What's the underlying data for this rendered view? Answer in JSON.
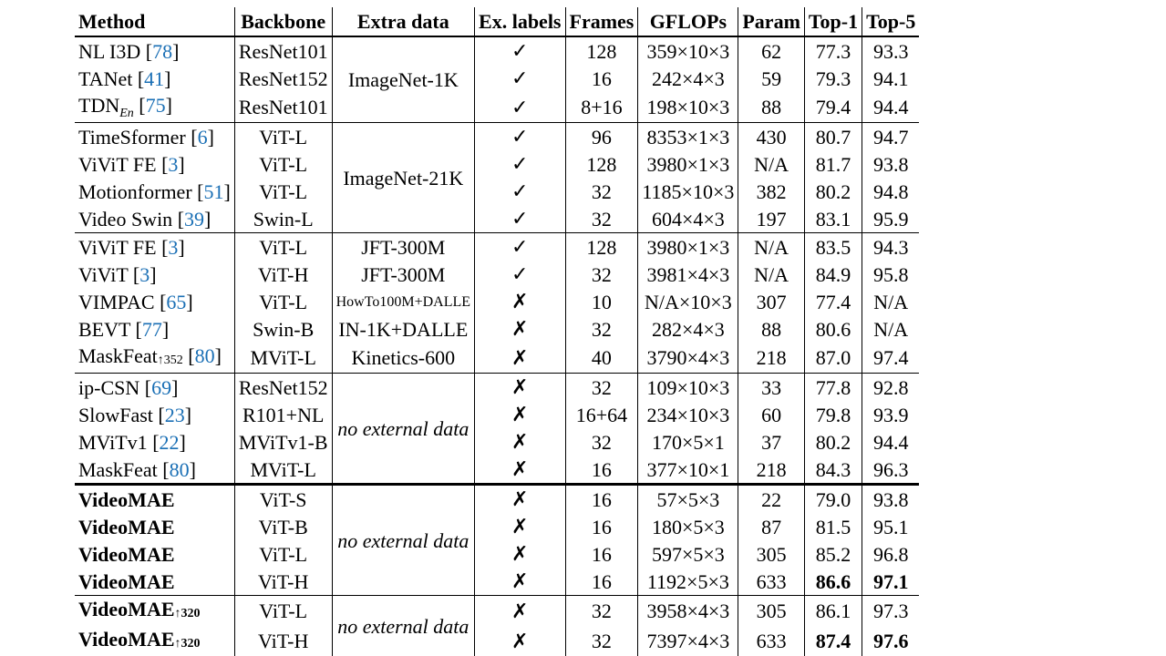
{
  "headers": [
    "Method",
    "Backbone",
    "Extra data",
    "Ex. labels",
    "Frames",
    "GFLOPs",
    "Param",
    "Top-1",
    "Top-5"
  ],
  "marks": {
    "yes": "✓",
    "no": "✗"
  },
  "groups": [
    {
      "extra": "ImageNet-1K",
      "extra_italic": false,
      "rows": [
        {
          "method": "NL I3D",
          "cite": "78",
          "backbone": "ResNet101",
          "labels": "yes",
          "frames": "128",
          "gflops": "359×10×3",
          "param": "62",
          "top1": "77.3",
          "top5": "93.3"
        },
        {
          "method": "TANet",
          "cite": "41",
          "backbone": "ResNet152",
          "labels": "yes",
          "frames": "16",
          "gflops": "242×4×3",
          "param": "59",
          "top1": "79.3",
          "top5": "94.1"
        },
        {
          "method": "TDN",
          "sub": "En",
          "cite": "75",
          "backbone": "ResNet101",
          "labels": "yes",
          "frames": "8+16",
          "gflops": "198×10×3",
          "param": "88",
          "top1": "79.4",
          "top5": "94.4"
        }
      ]
    },
    {
      "extra": "ImageNet-21K",
      "extra_italic": false,
      "rows": [
        {
          "method": "TimeSformer",
          "cite": "6",
          "backbone": "ViT-L",
          "labels": "yes",
          "frames": "96",
          "gflops": "8353×1×3",
          "param": "430",
          "top1": "80.7",
          "top5": "94.7"
        },
        {
          "method": "ViViT FE",
          "cite": "3",
          "backbone": "ViT-L",
          "labels": "yes",
          "frames": "128",
          "gflops": "3980×1×3",
          "param": "N/A",
          "top1": "81.7",
          "top5": "93.8"
        },
        {
          "method": "Motionformer",
          "cite": "51",
          "backbone": "ViT-L",
          "labels": "yes",
          "frames": "32",
          "gflops": "1185×10×3",
          "param": "382",
          "top1": "80.2",
          "top5": "94.8"
        },
        {
          "method": "Video Swin",
          "cite": "39",
          "backbone": "Swin-L",
          "labels": "yes",
          "frames": "32",
          "gflops": "604×4×3",
          "param": "197",
          "top1": "83.1",
          "top5": "95.9"
        }
      ]
    },
    {
      "extra": null,
      "rows": [
        {
          "method": "ViViT FE",
          "cite": "3",
          "backbone": "ViT-L",
          "extra": "JFT-300M",
          "labels": "yes",
          "frames": "128",
          "gflops": "3980×1×3",
          "param": "N/A",
          "top1": "83.5",
          "top5": "94.3"
        },
        {
          "method": "ViViT",
          "cite": "3",
          "backbone": "ViT-H",
          "extra": "JFT-300M",
          "labels": "yes",
          "frames": "32",
          "gflops": "3981×4×3",
          "param": "N/A",
          "top1": "84.9",
          "top5": "95.8"
        },
        {
          "method": "VIMPAC",
          "cite": "65",
          "backbone": "ViT-L",
          "extra": "HowTo100M+DALLE",
          "extra_small": true,
          "labels": "no",
          "frames": "10",
          "gflops": "N/A×10×3",
          "param": "307",
          "top1": "77.4",
          "top5": "N/A"
        },
        {
          "method": "BEVT",
          "cite": "77",
          "backbone": "Swin-B",
          "extra": "IN-1K+DALLE",
          "labels": "no",
          "frames": "32",
          "gflops": "282×4×3",
          "param": "88",
          "top1": "80.6",
          "top5": "N/A"
        },
        {
          "method": "MaskFeat",
          "sup": "↑352",
          "cite": "80",
          "backbone": "MViT-L",
          "extra": "Kinetics-600",
          "labels": "no",
          "frames": "40",
          "gflops": "3790×4×3",
          "param": "218",
          "top1": "87.0",
          "top5": "97.4"
        }
      ]
    },
    {
      "extra": "no external data",
      "extra_italic": true,
      "rows": [
        {
          "method": "ip-CSN",
          "cite": "69",
          "backbone": "ResNet152",
          "labels": "no",
          "frames": "32",
          "gflops": "109×10×3",
          "param": "33",
          "top1": "77.8",
          "top5": "92.8"
        },
        {
          "method": "SlowFast",
          "cite": "23",
          "backbone": "R101+NL",
          "labels": "no",
          "frames": "16+64",
          "gflops": "234×10×3",
          "param": "60",
          "top1": "79.8",
          "top5": "93.9"
        },
        {
          "method": "MViTv1",
          "cite": "22",
          "backbone": "MViTv1-B",
          "labels": "no",
          "frames": "32",
          "gflops": "170×5×1",
          "param": "37",
          "top1": "80.2",
          "top5": "94.4"
        },
        {
          "method": "MaskFeat",
          "cite": "80",
          "backbone": "MViT-L",
          "labels": "no",
          "frames": "16",
          "gflops": "377×10×1",
          "param": "218",
          "top1": "84.3",
          "top5": "96.3"
        }
      ]
    },
    {
      "extra": "no external data",
      "extra_italic": true,
      "heavy": true,
      "rows": [
        {
          "method": "VideoMAE",
          "bold": true,
          "backbone": "ViT-S",
          "labels": "no",
          "frames": "16",
          "gflops": "57×5×3",
          "param": "22",
          "top1": "79.0",
          "top5": "93.8"
        },
        {
          "method": "VideoMAE",
          "bold": true,
          "backbone": "ViT-B",
          "labels": "no",
          "frames": "16",
          "gflops": "180×5×3",
          "param": "87",
          "top1": "81.5",
          "top5": "95.1"
        },
        {
          "method": "VideoMAE",
          "bold": true,
          "backbone": "ViT-L",
          "labels": "no",
          "frames": "16",
          "gflops": "597×5×3",
          "param": "305",
          "top1": "85.2",
          "top5": "96.8"
        },
        {
          "method": "VideoMAE",
          "bold": true,
          "backbone": "ViT-H",
          "labels": "no",
          "frames": "16",
          "gflops": "1192×5×3",
          "param": "633",
          "top1": "86.6",
          "top5": "97.1",
          "bold_top1": true,
          "bold_top5": true
        }
      ]
    },
    {
      "extra": "no external data",
      "extra_italic": true,
      "rows": [
        {
          "method": "VideoMAE",
          "sup": "↑320",
          "bold": true,
          "backbone": "ViT-L",
          "labels": "no",
          "frames": "32",
          "gflops": "3958×4×3",
          "param": "305",
          "top1": "86.1",
          "top5": "97.3"
        },
        {
          "method": "VideoMAE",
          "sup": "↑320",
          "bold": true,
          "backbone": "ViT-H",
          "labels": "no",
          "frames": "32",
          "gflops": "7397×4×3",
          "param": "633",
          "top1": "87.4",
          "top5": "97.6",
          "bold_top1": true,
          "bold_top5": true
        }
      ]
    }
  ]
}
